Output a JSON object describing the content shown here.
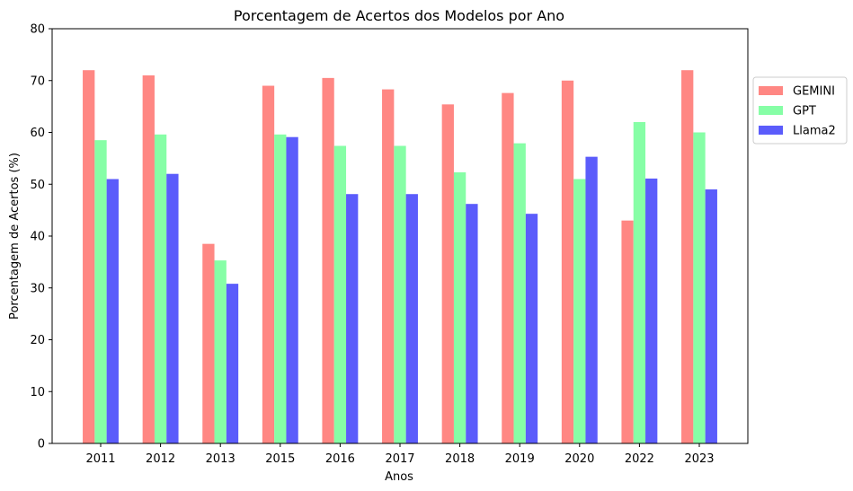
{
  "chart_data": {
    "type": "bar",
    "title": "Porcentagem de Acertos dos Modelos por Ano",
    "xlabel": "Anos",
    "ylabel": "Porcentagem de Acertos (%)",
    "ylim": [
      0,
      80
    ],
    "yticks": [
      0,
      10,
      20,
      30,
      40,
      50,
      60,
      70,
      80
    ],
    "grid": false,
    "legend_position": "right",
    "categories": [
      "2011",
      "2012",
      "2013",
      "2015",
      "2016",
      "2017",
      "2018",
      "2019",
      "2020",
      "2022",
      "2023"
    ],
    "series": [
      {
        "name": "GEMINI",
        "color": "#ff8783",
        "values": [
          72.0,
          71.0,
          38.5,
          69.0,
          70.5,
          68.3,
          65.4,
          67.6,
          70.0,
          43.0,
          72.0
        ]
      },
      {
        "name": "GPT",
        "color": "#86fea6",
        "values": [
          58.5,
          59.6,
          35.3,
          59.6,
          57.4,
          57.4,
          52.3,
          57.9,
          51.0,
          62.0,
          60.0
        ]
      },
      {
        "name": "Llama2",
        "color": "#5b5cfb",
        "values": [
          51.0,
          52.0,
          30.8,
          59.1,
          48.1,
          48.1,
          46.2,
          44.3,
          55.3,
          51.1,
          49.0
        ]
      }
    ]
  }
}
